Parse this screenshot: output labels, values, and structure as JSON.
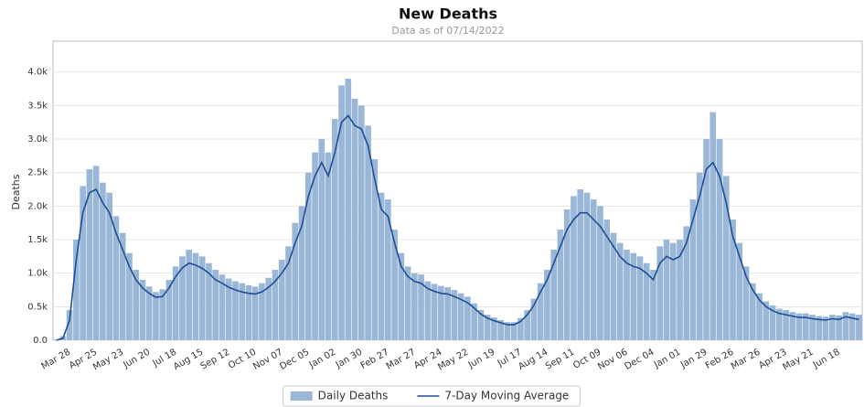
{
  "chart_data": {
    "type": "bar_line",
    "title": "New Deaths",
    "subtitle": "Data as of 07/14/2022",
    "ylabel": "Deaths",
    "categories": [
      null,
      null,
      "Mar 28",
      null,
      null,
      null,
      "Apr 25",
      null,
      null,
      null,
      "May 23",
      null,
      null,
      null,
      "Jun 20",
      null,
      null,
      null,
      "Jul 18",
      null,
      null,
      null,
      "Aug 15",
      null,
      null,
      null,
      "Sep 12",
      null,
      null,
      null,
      "Oct 10",
      null,
      null,
      null,
      "Nov 07",
      null,
      null,
      null,
      "Dec 05",
      null,
      null,
      null,
      "Jan 02",
      null,
      null,
      null,
      "Jan 30",
      null,
      null,
      null,
      "Feb 27",
      null,
      null,
      null,
      "Mar 27",
      null,
      null,
      null,
      "Apr 24",
      null,
      null,
      null,
      "May 22",
      null,
      null,
      null,
      "Jun 19",
      null,
      null,
      null,
      "Jul 17",
      null,
      null,
      null,
      "Aug 14",
      null,
      null,
      null,
      "Sep 11",
      null,
      null,
      null,
      "Oct 09",
      null,
      null,
      null,
      "Nov 06",
      null,
      null,
      null,
      "Dec 04",
      null,
      null,
      null,
      "Jan 01",
      null,
      null,
      null,
      "Jan 29",
      null,
      null,
      null,
      "Feb 26",
      null,
      null,
      null,
      "Mar 26",
      null,
      null,
      null,
      "Apr 23",
      null,
      null,
      null,
      "May 21",
      null,
      null,
      null,
      "Jun 18",
      null,
      null,
      null
    ],
    "series": [
      {
        "name": "Daily Deaths",
        "kind": "bar",
        "color": "#9bb7d8",
        "values": [
          10,
          60,
          450,
          1500,
          2300,
          2550,
          2600,
          2350,
          2200,
          1850,
          1600,
          1300,
          1050,
          900,
          800,
          720,
          760,
          900,
          1100,
          1250,
          1350,
          1300,
          1250,
          1150,
          1050,
          980,
          920,
          880,
          850,
          820,
          800,
          850,
          930,
          1050,
          1200,
          1400,
          1750,
          2000,
          2500,
          2800,
          3000,
          2800,
          3300,
          3800,
          3900,
          3600,
          3500,
          3200,
          2700,
          2200,
          2100,
          1650,
          1300,
          1100,
          1000,
          980,
          880,
          840,
          810,
          790,
          750,
          700,
          650,
          550,
          450,
          380,
          340,
          300,
          270,
          270,
          330,
          450,
          620,
          850,
          1050,
          1350,
          1650,
          1950,
          2150,
          2250,
          2200,
          2100,
          2000,
          1800,
          1600,
          1450,
          1350,
          1300,
          1250,
          1150,
          1050,
          1400,
          1500,
          1450,
          1500,
          1700,
          2100,
          2500,
          3000,
          3400,
          3000,
          2450,
          1800,
          1450,
          1100,
          850,
          700,
          580,
          520,
          470,
          450,
          420,
          400,
          400,
          380,
          360,
          350,
          380,
          370,
          420,
          400,
          380
        ]
      },
      {
        "name": "7-Day Moving Average",
        "kind": "line",
        "color": "#1f4e96",
        "values": [
          0,
          30,
          300,
          1200,
          1900,
          2200,
          2250,
          2050,
          1900,
          1600,
          1350,
          1100,
          900,
          780,
          700,
          640,
          650,
          780,
          950,
          1080,
          1150,
          1120,
          1070,
          1000,
          900,
          850,
          790,
          750,
          720,
          700,
          690,
          720,
          790,
          880,
          1000,
          1150,
          1450,
          1700,
          2150,
          2450,
          2650,
          2450,
          2800,
          3250,
          3350,
          3200,
          3150,
          2900,
          2400,
          1950,
          1850,
          1450,
          1100,
          950,
          880,
          850,
          770,
          730,
          700,
          690,
          650,
          610,
          560,
          480,
          390,
          330,
          290,
          260,
          230,
          230,
          280,
          380,
          520,
          720,
          900,
          1150,
          1400,
          1650,
          1800,
          1900,
          1900,
          1800,
          1700,
          1550,
          1400,
          1250,
          1150,
          1100,
          1070,
          1000,
          900,
          1150,
          1250,
          1200,
          1250,
          1450,
          1800,
          2150,
          2550,
          2650,
          2450,
          2050,
          1550,
          1250,
          950,
          750,
          600,
          500,
          440,
          400,
          380,
          360,
          340,
          340,
          320,
          310,
          300,
          320,
          310,
          350,
          330,
          310
        ]
      }
    ],
    "ylim": [
      0,
      4460
    ],
    "yticks": [
      {
        "value": 0,
        "label": "0.0"
      },
      {
        "value": 500,
        "label": "0.5k"
      },
      {
        "value": 1000,
        "label": "1.0k"
      },
      {
        "value": 1500,
        "label": "1.5k"
      },
      {
        "value": 2000,
        "label": "2.0k"
      },
      {
        "value": 2500,
        "label": "2.5k"
      },
      {
        "value": 3000,
        "label": "3.0k"
      },
      {
        "value": 3500,
        "label": "3.5k"
      },
      {
        "value": 4000,
        "label": "4.0k"
      }
    ],
    "grid": true,
    "legend": "bottom"
  }
}
